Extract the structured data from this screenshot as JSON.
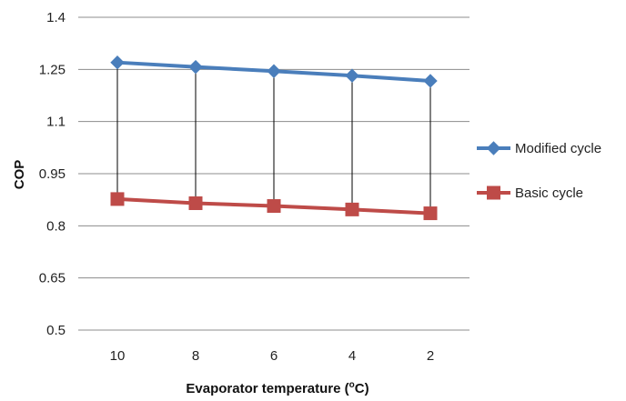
{
  "chart_data": {
    "type": "line",
    "categories": [
      "10",
      "8",
      "6",
      "4",
      "2"
    ],
    "series": [
      {
        "name": "Modified cycle",
        "values": [
          1.27,
          1.257,
          1.245,
          1.232,
          1.217
        ],
        "color": "#4a7ebb",
        "marker": "diamond"
      },
      {
        "name": "Basic cycle",
        "values": [
          0.877,
          0.865,
          0.857,
          0.847,
          0.836
        ],
        "color": "#be4b48",
        "marker": "square"
      }
    ],
    "ylabel": "COP",
    "xlabel_prefix": "Evaporator temperature (",
    "xlabel_sup": "o",
    "xlabel_suffix": "C)",
    "yticks": [
      "1.4",
      "1.25",
      "1.1",
      "0.95",
      "0.8",
      "0.65",
      "0.5"
    ],
    "ytick_values": [
      1.4,
      1.25,
      1.1,
      0.95,
      0.8,
      0.65,
      0.5
    ],
    "ylim": [
      0.5,
      1.4
    ],
    "grid": true,
    "high_low_lines": true,
    "legend_position": "right"
  }
}
